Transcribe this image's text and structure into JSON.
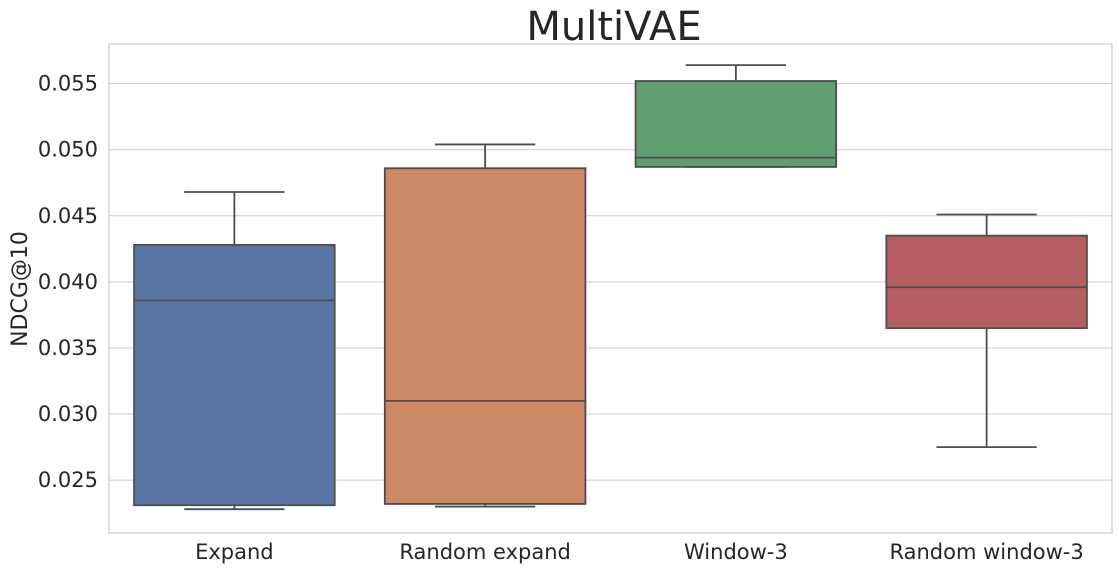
{
  "chart_data": {
    "type": "box",
    "title": "MultiVAE",
    "xlabel": "",
    "ylabel": "NDCG@10",
    "ylim": [
      0.021,
      0.058
    ],
    "yticks": [
      "0.025",
      "0.030",
      "0.035",
      "0.040",
      "0.045",
      "0.050",
      "0.055"
    ],
    "grid": true,
    "categories": [
      "Expand",
      "Random expand",
      "Window-3",
      "Random window-3"
    ],
    "boxes": [
      {
        "category": "Expand",
        "min": 0.0228,
        "q1": 0.0231,
        "median": 0.0386,
        "q3": 0.0428,
        "max": 0.0468,
        "color": "#5875a4"
      },
      {
        "category": "Random expand",
        "min": 0.023,
        "q1": 0.0232,
        "median": 0.031,
        "q3": 0.0486,
        "max": 0.0504,
        "color": "#cc8963"
      },
      {
        "category": "Window-3",
        "min": 0.0487,
        "q1": 0.0487,
        "median": 0.0494,
        "q3": 0.0552,
        "max": 0.0564,
        "color": "#5f9e6e"
      },
      {
        "category": "Random window-3",
        "min": 0.0275,
        "q1": 0.0365,
        "median": 0.0396,
        "q3": 0.0435,
        "max": 0.0451,
        "color": "#b55d60"
      }
    ]
  }
}
